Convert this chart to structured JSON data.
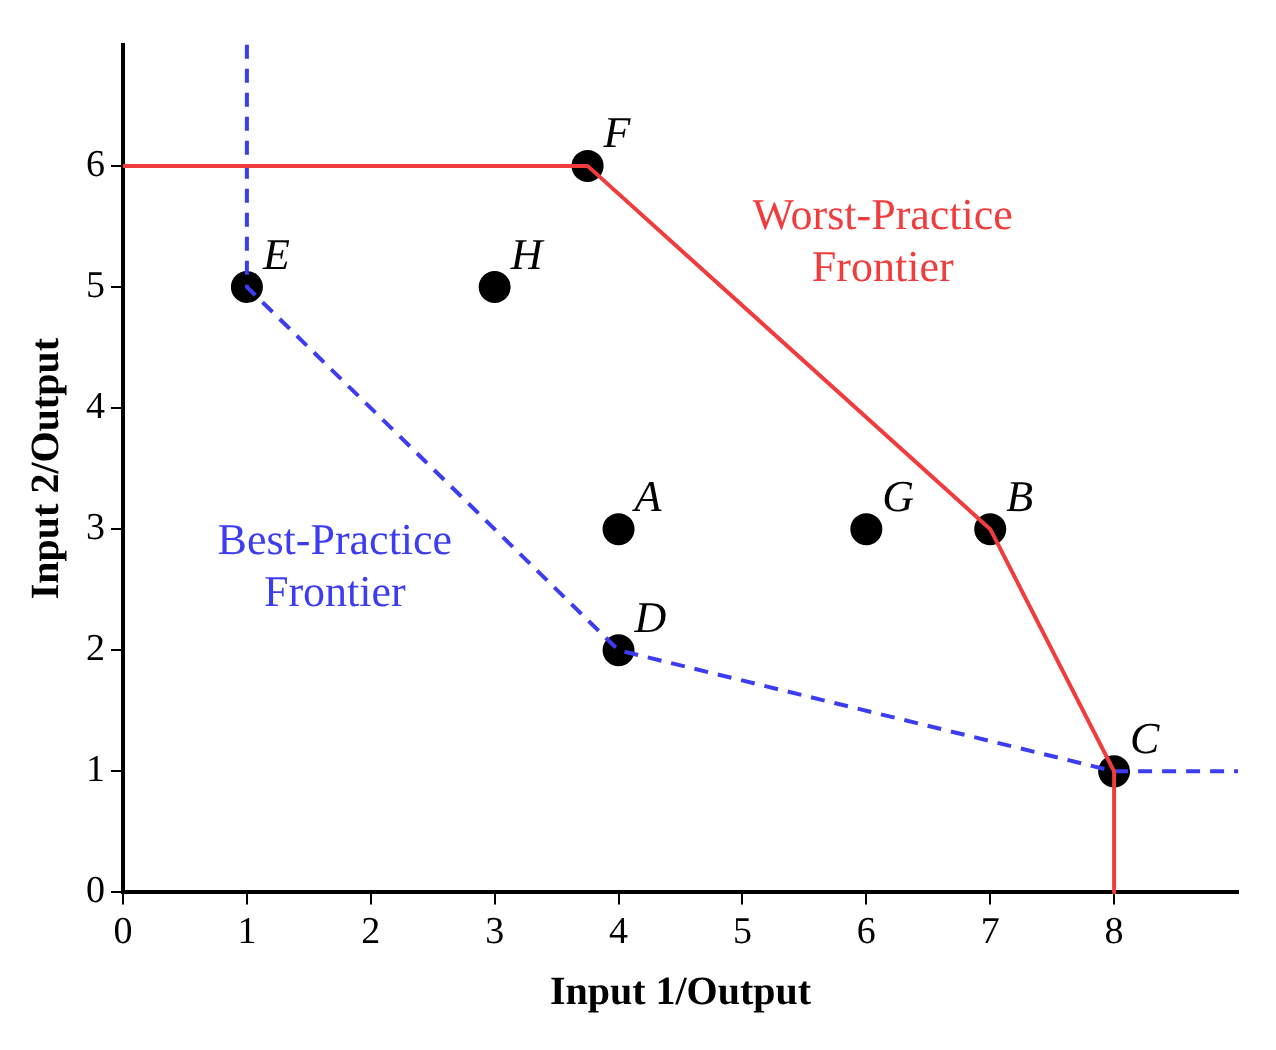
{
  "chart_data": {
    "type": "line",
    "xlabel": "Input 1/Output",
    "ylabel": "Input 2/Output",
    "xlim": [
      0,
      9
    ],
    "ylim": [
      0,
      7
    ],
    "xticks": [
      0,
      1,
      2,
      3,
      4,
      5,
      6,
      7,
      8
    ],
    "yticks": [
      0,
      1,
      2,
      3,
      4,
      5,
      6
    ],
    "grid": false,
    "legend": false,
    "series": [
      {
        "name": "Worst-Practice Frontier",
        "color": "#f03c3c",
        "line_style": "solid",
        "marker": "none",
        "x": [
          0,
          3.75,
          7,
          8,
          8
        ],
        "values": [
          6,
          6,
          3,
          1,
          0
        ]
      },
      {
        "name": "Best-Practice Frontier",
        "color": "#3c3cf0",
        "line_style": "dashed",
        "marker": "none",
        "x": [
          1,
          1,
          4,
          8,
          9
        ],
        "values": [
          7,
          5,
          2,
          1,
          1
        ]
      },
      {
        "type": "scatter",
        "color": "#000000",
        "marker": "circle",
        "x": [
          1,
          3,
          3.75,
          4,
          4,
          6,
          7,
          8
        ],
        "values": [
          5,
          5,
          6,
          3,
          2,
          3,
          3,
          1
        ]
      }
    ],
    "annotations": [
      {
        "text": "E",
        "x": 1,
        "y": 5
      },
      {
        "text": "H",
        "x": 3,
        "y": 5
      },
      {
        "text": "F",
        "x": 3.75,
        "y": 6
      },
      {
        "text": "A",
        "x": 4,
        "y": 3
      },
      {
        "text": "D",
        "x": 4,
        "y": 2
      },
      {
        "text": "G",
        "x": 6,
        "y": 3
      },
      {
        "text": "B",
        "x": 7,
        "y": 3
      },
      {
        "text": "C",
        "x": 8,
        "y": 1
      }
    ]
  }
}
